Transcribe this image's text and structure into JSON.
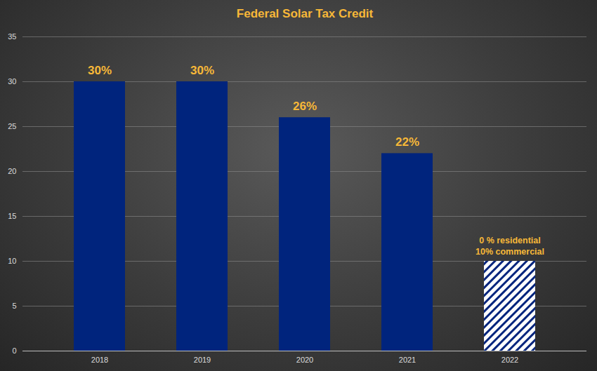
{
  "chart_data": {
    "type": "bar",
    "title": "Federal Solar Tax Credit",
    "categories": [
      "2018",
      "2019",
      "2020",
      "2021",
      "2022"
    ],
    "values": [
      30,
      30,
      26,
      22,
      10
    ],
    "value_labels": [
      "30%",
      "30%",
      "26%",
      "22%",
      null
    ],
    "data_labels": true,
    "color": "#00247d",
    "annotations": [
      {
        "category": "2022",
        "text": [
          "0 % residential",
          "10% commercial"
        ]
      }
    ],
    "ylim": [
      0,
      35
    ],
    "yticks": [
      0,
      5,
      10,
      15,
      20,
      25,
      30,
      35
    ],
    "grid": true
  }
}
